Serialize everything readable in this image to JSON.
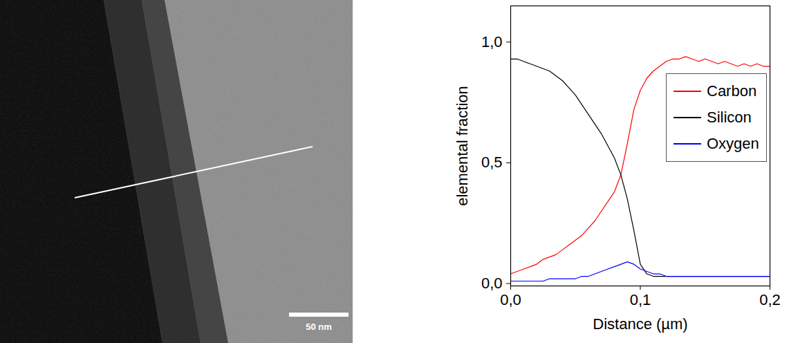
{
  "image": {
    "scale_bar_label": "50 nm"
  },
  "chart_data": {
    "type": "line",
    "x_label": "Distance (µm)",
    "y_label": "elemental fraction",
    "x": [
      0,
      0.005,
      0.01,
      0.015,
      0.02,
      0.025,
      0.03,
      0.035,
      0.04,
      0.045,
      0.05,
      0.055,
      0.06,
      0.065,
      0.07,
      0.075,
      0.08,
      0.085,
      0.09,
      0.095,
      0.1,
      0.105,
      0.11,
      0.115,
      0.12,
      0.125,
      0.13,
      0.135,
      0.14,
      0.145,
      0.15,
      0.155,
      0.16,
      0.165,
      0.17,
      0.175,
      0.18,
      0.185,
      0.19,
      0.195,
      0.2
    ],
    "series": [
      {
        "name": "Carbon",
        "color": "#ff0000",
        "values": [
          0.04,
          0.05,
          0.06,
          0.07,
          0.08,
          0.1,
          0.11,
          0.12,
          0.14,
          0.16,
          0.18,
          0.2,
          0.23,
          0.26,
          0.3,
          0.34,
          0.38,
          0.45,
          0.58,
          0.72,
          0.8,
          0.85,
          0.88,
          0.9,
          0.92,
          0.93,
          0.93,
          0.94,
          0.93,
          0.92,
          0.93,
          0.92,
          0.91,
          0.92,
          0.91,
          0.9,
          0.91,
          0.9,
          0.91,
          0.9,
          0.9
        ]
      },
      {
        "name": "Silicon",
        "color": "#000000",
        "values": [
          0.93,
          0.93,
          0.92,
          0.91,
          0.9,
          0.89,
          0.88,
          0.86,
          0.84,
          0.81,
          0.78,
          0.74,
          0.7,
          0.66,
          0.62,
          0.57,
          0.52,
          0.45,
          0.35,
          0.22,
          0.08,
          0.04,
          0.03,
          0.03,
          0.03,
          0.03,
          0.03,
          0.03,
          0.03,
          0.03,
          0.03,
          0.03,
          0.03,
          0.03,
          0.03,
          0.03,
          0.03,
          0.03,
          0.03,
          0.03,
          0.03
        ]
      },
      {
        "name": "Oxygen",
        "color": "#0000ff",
        "values": [
          0.01,
          0.01,
          0.01,
          0.01,
          0.01,
          0.01,
          0.02,
          0.02,
          0.02,
          0.02,
          0.02,
          0.03,
          0.03,
          0.04,
          0.05,
          0.06,
          0.07,
          0.08,
          0.09,
          0.08,
          0.06,
          0.05,
          0.04,
          0.04,
          0.03,
          0.03,
          0.03,
          0.03,
          0.03,
          0.03,
          0.03,
          0.03,
          0.03,
          0.03,
          0.03,
          0.03,
          0.03,
          0.03,
          0.03,
          0.03,
          0.03
        ]
      }
    ],
    "xlim": [
      0,
      0.2
    ],
    "ylim": [
      -0.01,
      1.15
    ],
    "xticks": [
      {
        "value": 0,
        "label": "0,0"
      },
      {
        "value": 0.1,
        "label": "0,1"
      },
      {
        "value": 0.2,
        "label": "0,2"
      }
    ],
    "yticks": [
      {
        "value": 0,
        "label": "0,0"
      },
      {
        "value": 0.5,
        "label": "0,5"
      },
      {
        "value": 1,
        "label": "1,0"
      }
    ],
    "legend": "right",
    "grid": false
  }
}
